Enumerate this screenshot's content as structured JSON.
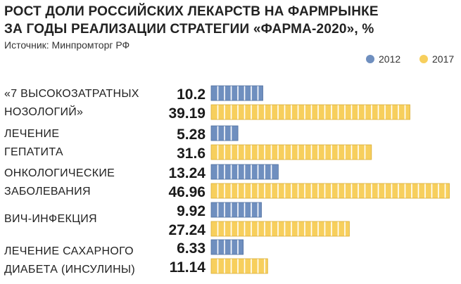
{
  "title_line1": "РОСТ ДОЛИ РОССИЙСКИХ ЛЕКАРСТВ НА ФАРМРЫНКЕ",
  "title_line2": "ЗА ГОДЫ РЕАЛИЗАЦИИ СТРАТЕГИИ «ФАРМА-2020», %",
  "source": "Источник: Минпромторг РФ",
  "colors": {
    "s2012": "#6f8fbf",
    "s2017": "#f7cf5d"
  },
  "chart_data": {
    "type": "bar",
    "orientation": "horizontal",
    "title": "РОСТ ДОЛИ РОССИЙСКИХ ЛЕКАРСТВ НА ФАРМРЫНКЕ ЗА ГОДЫ РЕАЛИЗАЦИИ СТРАТЕГИИ «ФАРМА-2020», %",
    "categories": [
      {
        "line1": "«7 ВЫСОКОЗАТРАТНЫХ",
        "line2": "НОЗОЛОГИЙ»"
      },
      {
        "line1": "ЛЕЧЕНИЕ",
        "line2": "ГЕПАТИТА"
      },
      {
        "line1": "ОНКОЛОГИЧЕСКИЕ",
        "line2": "ЗАБОЛЕВАНИЯ"
      },
      {
        "line1": "ВИЧ-ИНФЕКЦИЯ",
        "line2": ""
      },
      {
        "line1": "ЛЕЧЕНИЕ САХАРНОГО",
        "line2": "ДИАБЕТА (ИНСУЛИНЫ)"
      }
    ],
    "series": [
      {
        "name": "2012",
        "values": [
          10.2,
          5.28,
          13.24,
          9.92,
          6.33
        ]
      },
      {
        "name": "2017",
        "values": [
          39.19,
          31.6,
          46.96,
          27.24,
          11.14
        ]
      }
    ],
    "value_labels": [
      [
        "10.2",
        "5.28",
        "13.24",
        "9.92",
        "6.33"
      ],
      [
        "39.19",
        "31.6",
        "46.96",
        "27.24",
        "11.14"
      ]
    ],
    "xlim": [
      0,
      48
    ],
    "legend_position": "top-right",
    "grid": false
  }
}
